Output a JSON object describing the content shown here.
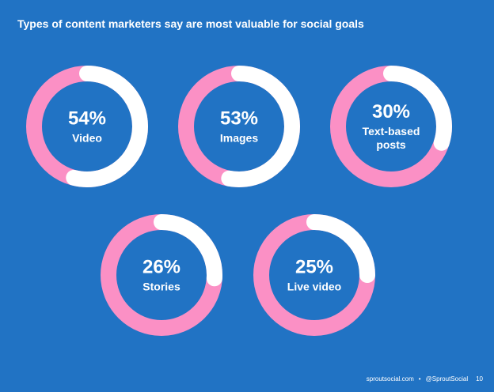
{
  "title": "Types of content marketers say are most valuable for social goals",
  "chart_data": [
    {
      "type": "donut",
      "categories": [
        "Video"
      ],
      "values": [
        54
      ],
      "value_labels": [
        "54%"
      ],
      "color": "#ffffff",
      "track_color": "#fb90c5"
    },
    {
      "type": "donut",
      "categories": [
        "Images"
      ],
      "values": [
        53
      ],
      "value_labels": [
        "53%"
      ],
      "color": "#ffffff",
      "track_color": "#fb90c5"
    },
    {
      "type": "donut",
      "categories": [
        "Text-based posts"
      ],
      "values": [
        30
      ],
      "value_labels": [
        "30%"
      ],
      "color": "#ffffff",
      "track_color": "#fb90c5"
    },
    {
      "type": "donut",
      "categories": [
        "Stories"
      ],
      "values": [
        26
      ],
      "value_labels": [
        "26%"
      ],
      "color": "#ffffff",
      "track_color": "#fb90c5"
    },
    {
      "type": "donut",
      "categories": [
        "Live video"
      ],
      "values": [
        25
      ],
      "value_labels": [
        "25%"
      ],
      "color": "#ffffff",
      "track_color": "#fb90c5"
    }
  ],
  "footer": {
    "site": "sproutsocial.com",
    "handle": "@SproutSocial",
    "page": "10"
  }
}
